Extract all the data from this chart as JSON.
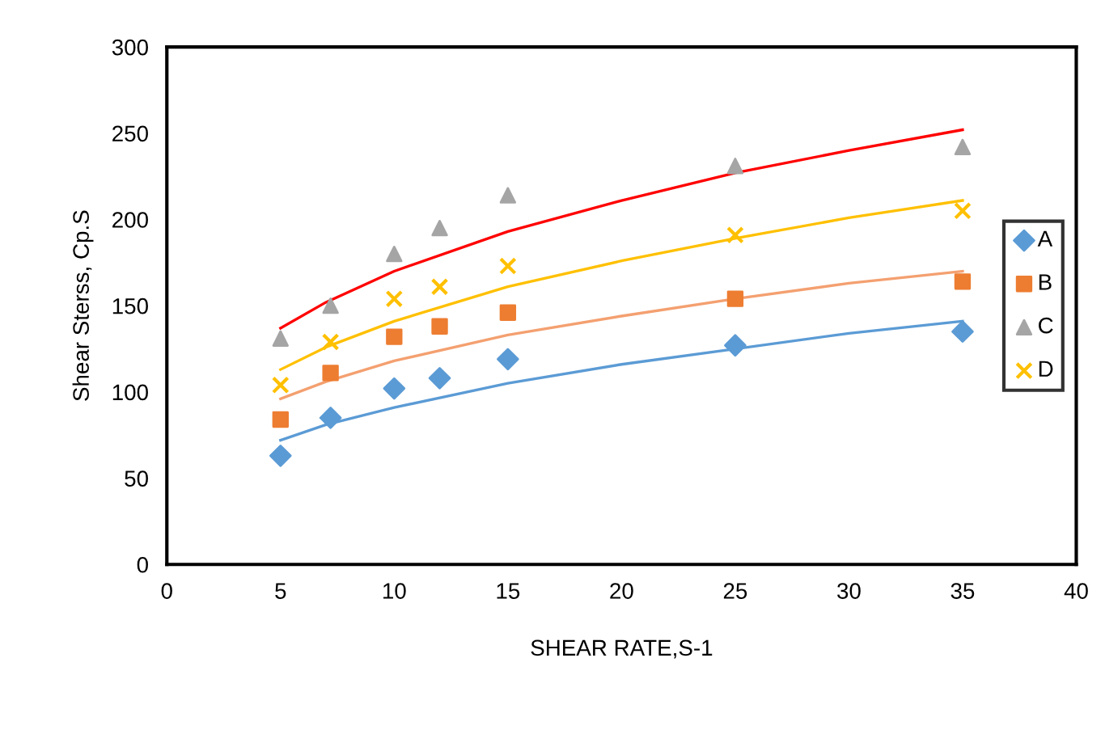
{
  "chart_data": {
    "type": "scatter",
    "xlabel": "SHEAR RATE,S-1",
    "ylabel": "Shear Sterss, Cp.S",
    "x": [
      5,
      7.2,
      10,
      12,
      15,
      25,
      35
    ],
    "series": [
      {
        "name": "A",
        "color": "#5b9bd5",
        "marker": "diamond",
        "values": [
          63,
          85,
          102,
          108,
          119,
          127,
          135
        ]
      },
      {
        "name": "B",
        "color": "#ed7d31",
        "marker": "square",
        "values": [
          84,
          111,
          132,
          138,
          146,
          154,
          164
        ]
      },
      {
        "name": "C",
        "color": "#a5a5a5",
        "marker": "triangle",
        "values": [
          131,
          150,
          180,
          195,
          214,
          231,
          242
        ]
      },
      {
        "name": "D",
        "color": "#ffc000",
        "marker": "cross",
        "values": [
          104,
          129,
          154,
          161,
          173,
          191,
          205
        ]
      },
      {
        "type": "line",
        "color": "#5b9bd5",
        "x": [
          5,
          7,
          10,
          15,
          20,
          25,
          30,
          35
        ],
        "values": [
          72,
          81,
          91,
          105,
          116,
          125,
          134,
          141
        ]
      },
      {
        "type": "line",
        "color": "#f4a070",
        "x": [
          5,
          7,
          10,
          15,
          20,
          25,
          30,
          35
        ],
        "values": [
          96,
          106,
          118,
          133,
          144,
          154,
          163,
          170
        ]
      },
      {
        "type": "line",
        "color": "#ff0000",
        "x": [
          5,
          7,
          10,
          15,
          20,
          25,
          30,
          35
        ],
        "values": [
          137,
          152,
          170,
          193,
          211,
          227,
          240,
          252
        ]
      },
      {
        "type": "line",
        "color": "#ffc000",
        "x": [
          5,
          7,
          10,
          15,
          20,
          25,
          30,
          35
        ],
        "values": [
          113,
          126,
          141,
          161,
          176,
          189,
          201,
          211
        ]
      }
    ],
    "xlim": [
      0,
      40
    ],
    "xticks": [
      0,
      5,
      10,
      15,
      20,
      25,
      30,
      35,
      40
    ],
    "ylim": [
      0,
      300
    ],
    "yticks": [
      0,
      50,
      100,
      150,
      200,
      250,
      300
    ],
    "grid": false,
    "legend": "right",
    "line_style": "solid"
  }
}
